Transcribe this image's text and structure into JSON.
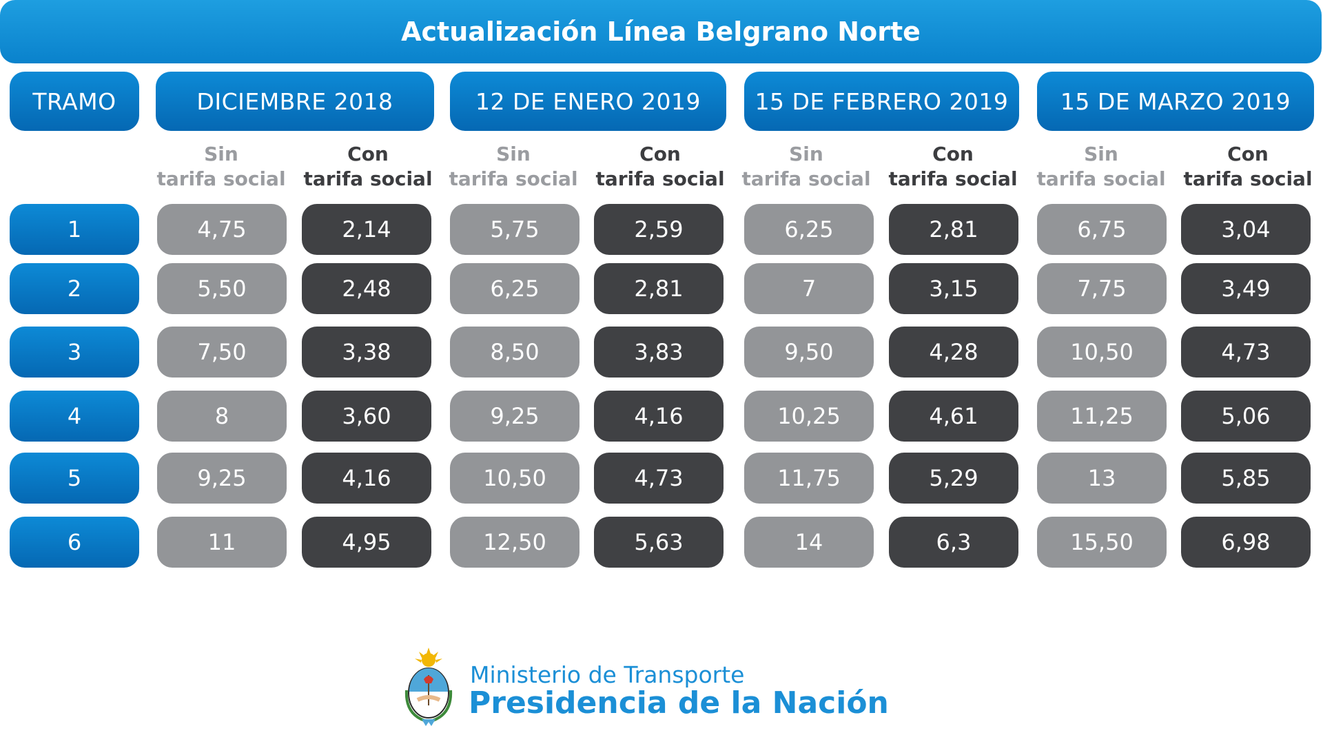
{
  "title": "Actualización Línea Belgrano Norte",
  "tramo_header": "TRAMO",
  "periods": [
    {
      "label": "DICIEMBRE 2018",
      "sin_line1": "Sin",
      "sin_line2": "tarifa social",
      "con_line1": "Con",
      "con_line2": "tarifa social"
    },
    {
      "label": "12 DE ENERO 2019",
      "sin_line1": "Sin",
      "sin_line2": "tarifa social",
      "con_line1": "Con",
      "con_line2": "tarifa social"
    },
    {
      "label": "15 DE FEBRERO 2019",
      "sin_line1": "Sin",
      "sin_line2": "tarifa social",
      "con_line1": "Con",
      "con_line2": "tarifa social"
    },
    {
      "label": "15 DE MARZO 2019",
      "sin_line1": "Sin",
      "sin_line2": "tarifa social",
      "con_line1": "Con",
      "con_line2": "tarifa social"
    }
  ],
  "rows": [
    {
      "tramo": "1",
      "values": [
        "4,75",
        "2,14",
        "5,75",
        "2,59",
        "6,25",
        "2,81",
        "6,75",
        "3,04"
      ]
    },
    {
      "tramo": "2",
      "values": [
        "5,50",
        "2,48",
        "6,25",
        "2,81",
        "7",
        "3,15",
        "7,75",
        "3,49"
      ]
    },
    {
      "tramo": "3",
      "values": [
        "7,50",
        "3,38",
        "8,50",
        "3,83",
        "9,50",
        "4,28",
        "10,50",
        "4,73"
      ]
    },
    {
      "tramo": "4",
      "values": [
        "8",
        "3,60",
        "9,25",
        "4,16",
        "10,25",
        "4,61",
        "11,25",
        "5,06"
      ]
    },
    {
      "tramo": "5",
      "values": [
        "9,25",
        "4,16",
        "10,50",
        "4,73",
        "11,75",
        "5,29",
        "13",
        "5,85"
      ]
    },
    {
      "tramo": "6",
      "values": [
        "11",
        "4,95",
        "12,50",
        "5,63",
        "14",
        "6,3",
        "15,50",
        "6,98"
      ]
    }
  ],
  "footer": {
    "line1": "Ministerio de Transporte",
    "line2": "Presidencia de la Nación",
    "logo_icon": "argentina-coat-of-arms-icon"
  },
  "colors": {
    "blue": "#0a82cc",
    "sin_gray": "#939598",
    "con_dark": "#404144"
  }
}
